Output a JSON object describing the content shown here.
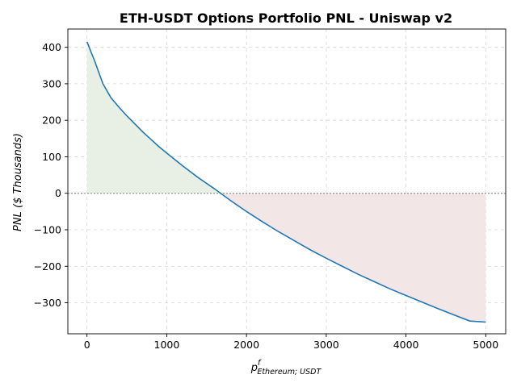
{
  "chart_data": {
    "type": "line",
    "title": "ETH-USDT Options Portfolio PNL - Uniswap v2",
    "xlabel_main": "p",
    "xlabel_sup": "f",
    "xlabel_sub": "Ethereum; USDT",
    "ylabel": "PNL ($ Thousands)",
    "xlim": [
      -240,
      5250
    ],
    "ylim": [
      -385,
      450
    ],
    "xticks": [
      0,
      1000,
      2000,
      3000,
      4000,
      5000
    ],
    "yticks": [
      -300,
      -200,
      -100,
      0,
      100,
      200,
      300,
      400
    ],
    "xtick_labels": [
      "0",
      "1000",
      "2000",
      "3000",
      "4000",
      "5000"
    ],
    "ytick_labels": [
      "−300",
      "−200",
      "−100",
      "0",
      "100",
      "200",
      "300",
      "400"
    ],
    "grid": true,
    "zero_line": true,
    "fill_positive_color": "#e8f0e6",
    "fill_negative_color": "#f3e6e6",
    "series": [
      {
        "color": "#1f77b4",
        "x": [
          0,
          100,
          200,
          300,
          400,
          500,
          600,
          700,
          800,
          900,
          1000,
          1200,
          1400,
          1600,
          1800,
          2000,
          2200,
          2400,
          2600,
          2800,
          3000,
          3200,
          3400,
          3600,
          3800,
          4000,
          4200,
          4400,
          4600,
          4800,
          5000
        ],
        "y": [
          415,
          360,
          300,
          262,
          236,
          212,
          190,
          168,
          148,
          128,
          110,
          75,
          42,
          12,
          -20,
          -50,
          -78,
          -105,
          -130,
          -155,
          -178,
          -200,
          -222,
          -242,
          -262,
          -280,
          -298,
          -316,
          -333,
          -350,
          -353
        ]
      }
    ]
  }
}
